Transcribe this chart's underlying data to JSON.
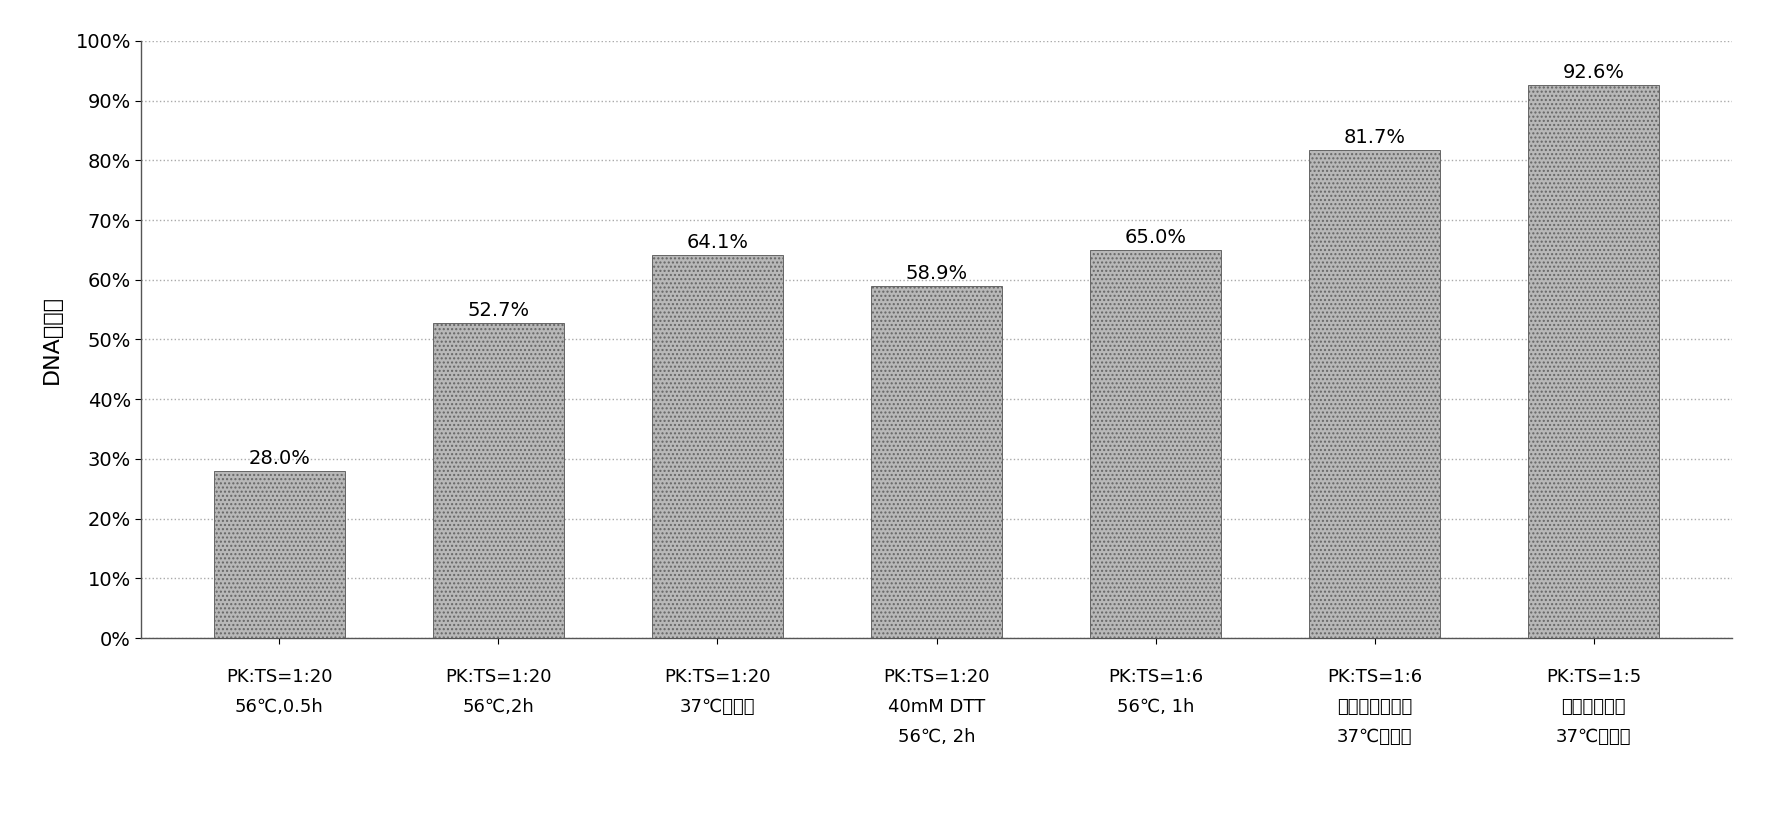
{
  "categories_line1": [
    "PK:TS=1:20",
    "PK:TS=1:20",
    "PK:TS=1:20",
    "PK:TS=1:20",
    "PK:TS=1:6",
    "PK:TS=1:6",
    "PK:TS=1:5"
  ],
  "categories_line2": [
    "56℃,0.5h",
    "56℃,2h",
    "37℃，过夜",
    "40mM DTT",
    "56℃, 1h",
    "（提高酶用量）",
    "（稀释样品）"
  ],
  "categories_line3": [
    "",
    "",
    "",
    "56℃, 2h",
    "",
    "37℃，过夜",
    "37℃，过夜"
  ],
  "values": [
    28.0,
    52.7,
    64.1,
    58.9,
    65.0,
    81.7,
    92.6
  ],
  "labels": [
    "28.0%",
    "52.7%",
    "64.1%",
    "58.9%",
    "65.0%",
    "81.7%",
    "92.6%"
  ],
  "ylabel": "DNA回收率",
  "ylim": [
    0,
    100
  ],
  "yticks": [
    0,
    10,
    20,
    30,
    40,
    50,
    60,
    70,
    80,
    90,
    100
  ],
  "ytick_labels": [
    "0%",
    "10%",
    "20%",
    "30%",
    "40%",
    "50%",
    "60%",
    "70%",
    "80%",
    "90%",
    "100%"
  ],
  "bar_color": "#b8b8b8",
  "bar_hatch": "....",
  "bar_edge_color": "#666666",
  "grid_color": "#aaaaaa",
  "grid_linestyle": ":",
  "background_color": "#ffffff",
  "label_fontsize": 14,
  "tick_fontsize": 14,
  "ylabel_fontsize": 16,
  "xtick_fontsize": 13,
  "bar_width": 0.6
}
